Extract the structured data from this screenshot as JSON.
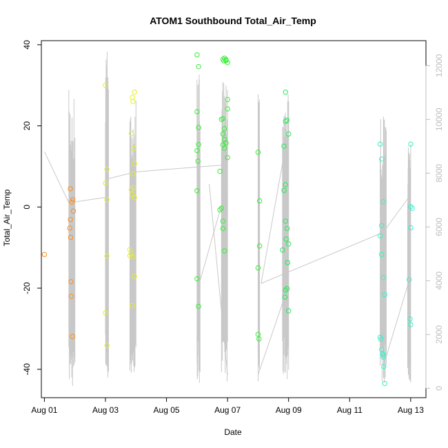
{
  "chart_data": {
    "type": "scatter",
    "title": "ATOM1 Southbound Total_Air_Temp",
    "xlabel": "Date",
    "ylabel": "Total_Air_Temp",
    "x_unit": "day of August",
    "xlim": [
      0.9,
      13.5
    ],
    "ylim": [
      -47,
      41
    ],
    "x_ticks": [
      {
        "value": 1,
        "label": "Aug 01"
      },
      {
        "value": 3,
        "label": "Aug 03"
      },
      {
        "value": 5,
        "label": "Aug 05"
      },
      {
        "value": 7,
        "label": "Aug 07"
      },
      {
        "value": 9,
        "label": "Aug 09"
      },
      {
        "value": 11,
        "label": "Aug 11"
      },
      {
        "value": 13,
        "label": "Aug 13"
      }
    ],
    "y_ticks": [
      -40,
      -20,
      0,
      20,
      40
    ],
    "secondary_y": {
      "color": "#bdbdbd",
      "ylim": [
        -350,
        12930
      ],
      "ticks": [
        0,
        2000,
        4000,
        6000,
        8000,
        10000,
        12000
      ],
      "series": {
        "name": "",
        "color": "#c8c8c8",
        "segments": [
          {
            "x": [
              1.0,
              1.8
            ],
            "y": [
              8800,
              6900
            ]
          },
          {
            "x": [
              1.8,
              3.0
            ],
            "y": [
              6900,
              7100
            ]
          },
          {
            "x": [
              3.0,
              3.05
            ],
            "y": [
              7100,
              12000
            ]
          },
          {
            "x": [
              3.05,
              3.1
            ],
            "y": [
              12000,
              7800
            ]
          },
          {
            "x": [
              3.1,
              4.0
            ],
            "y": [
              7800,
              8050
            ]
          },
          {
            "x": [
              4.0,
              6.8
            ],
            "y": [
              8050,
              8300
            ]
          },
          {
            "x": [
              6.1,
              7.0
            ],
            "y": [
              4000,
              7600
            ]
          },
          {
            "x": [
              6.4,
              7.0
            ],
            "y": [
              7600,
              500
            ]
          },
          {
            "x": [
              8.0,
              8.9
            ],
            "y": [
              500,
              3500
            ]
          },
          {
            "x": [
              8.1,
              8.9
            ],
            "y": [
              3900,
              9000
            ]
          },
          {
            "x": [
              8.1,
              12.1
            ],
            "y": [
              3900,
              5800
            ]
          },
          {
            "x": [
              12.1,
              13.0
            ],
            "y": [
              5800,
              7200
            ]
          },
          {
            "x": [
              12.1,
              13.0
            ],
            "y": [
              800,
              4200
            ]
          }
        ],
        "flight_bursts": [
          {
            "x": [
              1.8,
              2.0
            ],
            "ymin": 0,
            "ymax": 11100
          },
          {
            "x": [
              3.0,
              3.1
            ],
            "ymin": 300,
            "ymax": 12700
          },
          {
            "x": [
              3.8,
              4.0
            ],
            "ymin": 200,
            "ymax": 11000
          },
          {
            "x": [
              6.0,
              6.1
            ],
            "ymin": 200,
            "ymax": 11700
          },
          {
            "x": [
              6.8,
              7.0
            ],
            "ymin": 200,
            "ymax": 11400
          },
          {
            "x": [
              8.0,
              8.05
            ],
            "ymin": 200,
            "ymax": 11300
          },
          {
            "x": [
              8.8,
              9.0
            ],
            "ymin": 300,
            "ymax": 11500
          },
          {
            "x": [
              12.0,
              12.2
            ],
            "ymin": 200,
            "ymax": 10200
          },
          {
            "x": [
              12.9,
              13.0
            ],
            "ymin": 200,
            "ymax": 9100
          }
        ]
      }
    },
    "series": [
      {
        "name": "",
        "color": "#FF8C1A",
        "points": [
          [
            1.0,
            -11.7
          ],
          [
            1.85,
            4.5
          ],
          [
            1.9,
            1.2
          ],
          [
            1.93,
            1.8
          ],
          [
            1.95,
            -1.0
          ],
          [
            1.85,
            -3.1
          ],
          [
            1.83,
            -5.2
          ],
          [
            1.86,
            -7.5
          ],
          [
            1.87,
            -18.4
          ],
          [
            1.88,
            -22.0
          ],
          [
            1.92,
            -31.9
          ]
        ]
      },
      {
        "name": "",
        "color": "#E6F01E",
        "points": [
          [
            3.0,
            30.0
          ],
          [
            3.05,
            9.3
          ],
          [
            3.0,
            5.9
          ],
          [
            3.05,
            1.8
          ],
          [
            3.05,
            -12.1
          ],
          [
            3.0,
            -26.1
          ],
          [
            3.05,
            -34.1
          ],
          [
            3.85,
            18.1
          ],
          [
            3.9,
            26.0
          ],
          [
            3.95,
            28.3
          ],
          [
            3.88,
            27.0
          ],
          [
            3.92,
            14.5
          ],
          [
            3.95,
            10.7
          ],
          [
            3.9,
            8.2
          ],
          [
            3.85,
            4.3
          ],
          [
            3.88,
            3.1
          ],
          [
            3.92,
            4.8
          ],
          [
            3.95,
            2.3
          ],
          [
            3.8,
            -10.5
          ],
          [
            3.85,
            -11.5
          ],
          [
            3.8,
            -12.0
          ],
          [
            3.9,
            -12.3
          ],
          [
            3.95,
            -17.1
          ],
          [
            3.88,
            -24.3
          ]
        ]
      },
      {
        "name": "",
        "color": "#33EE33",
        "points": [
          [
            6.0,
            37.5
          ],
          [
            6.05,
            34.6
          ],
          [
            6.0,
            23.5
          ],
          [
            6.05,
            19.6
          ],
          [
            6.05,
            15.4
          ],
          [
            6.0,
            13.9
          ],
          [
            6.03,
            11.3
          ],
          [
            6.0,
            4.0
          ],
          [
            6.0,
            -17.7
          ],
          [
            6.05,
            -24.5
          ],
          [
            6.85,
            36.4
          ],
          [
            6.9,
            36.7
          ],
          [
            6.95,
            36.1
          ],
          [
            7.0,
            35.6
          ],
          [
            6.95,
            36.3
          ],
          [
            6.88,
            36.0
          ],
          [
            6.8,
            21.6
          ],
          [
            6.85,
            21.8
          ],
          [
            6.9,
            19.3
          ],
          [
            6.85,
            18.0
          ],
          [
            6.9,
            16.6
          ],
          [
            6.95,
            15.8
          ],
          [
            6.85,
            15.3
          ],
          [
            6.9,
            14.5
          ],
          [
            7.0,
            26.5
          ],
          [
            7.0,
            24.2
          ],
          [
            7.0,
            12.2
          ],
          [
            6.75,
            8.8
          ],
          [
            6.8,
            -0.3
          ],
          [
            6.75,
            -0.7
          ],
          [
            6.85,
            -3.5
          ],
          [
            6.85,
            -5.3
          ],
          [
            6.9,
            -10.8
          ],
          [
            8.0,
            13.5
          ],
          [
            8.05,
            1.5
          ],
          [
            8.05,
            -9.6
          ],
          [
            8.0,
            -15.0
          ],
          [
            8.0,
            -31.4
          ],
          [
            8.03,
            -32.5
          ]
        ]
      },
      {
        "name": "",
        "color": "#22E855",
        "points": [
          [
            8.9,
            28.3
          ],
          [
            8.9,
            21.1
          ],
          [
            8.95,
            21.4
          ],
          [
            9.0,
            18.0
          ],
          [
            8.85,
            15.0
          ],
          [
            8.9,
            5.5
          ],
          [
            8.85,
            4.1
          ],
          [
            8.9,
            -3.5
          ],
          [
            8.95,
            -5.3
          ],
          [
            8.92,
            -7.9
          ],
          [
            9.0,
            -9.1
          ],
          [
            8.97,
            -13.7
          ],
          [
            8.8,
            -10.6
          ],
          [
            8.95,
            -20.1
          ],
          [
            8.9,
            -20.5
          ],
          [
            8.88,
            -22.2
          ],
          [
            9.0,
            -25.6
          ]
        ]
      },
      {
        "name": "",
        "color": "#33F2C8",
        "points": [
          [
            12.0,
            15.5
          ],
          [
            12.05,
            11.8
          ],
          [
            12.05,
            -4.6
          ],
          [
            12.0,
            -7.1
          ],
          [
            12.1,
            1.3
          ],
          [
            12.05,
            -11.7
          ],
          [
            12.1,
            -17.4
          ],
          [
            12.15,
            -21.6
          ],
          [
            12.0,
            -32.1
          ],
          [
            12.02,
            -32.6
          ],
          [
            12.05,
            -35.1
          ],
          [
            12.08,
            -36.2
          ],
          [
            12.1,
            -36.5
          ],
          [
            12.1,
            -37.0
          ],
          [
            12.12,
            -39.3
          ],
          [
            12.15,
            -43.5
          ],
          [
            13.0,
            15.5
          ],
          [
            13.0,
            0.1
          ],
          [
            13.05,
            -0.3
          ],
          [
            13.0,
            -5.1
          ],
          [
            12.95,
            -17.9
          ],
          [
            12.98,
            -27.6
          ],
          [
            13.0,
            -29.0
          ]
        ]
      }
    ]
  }
}
